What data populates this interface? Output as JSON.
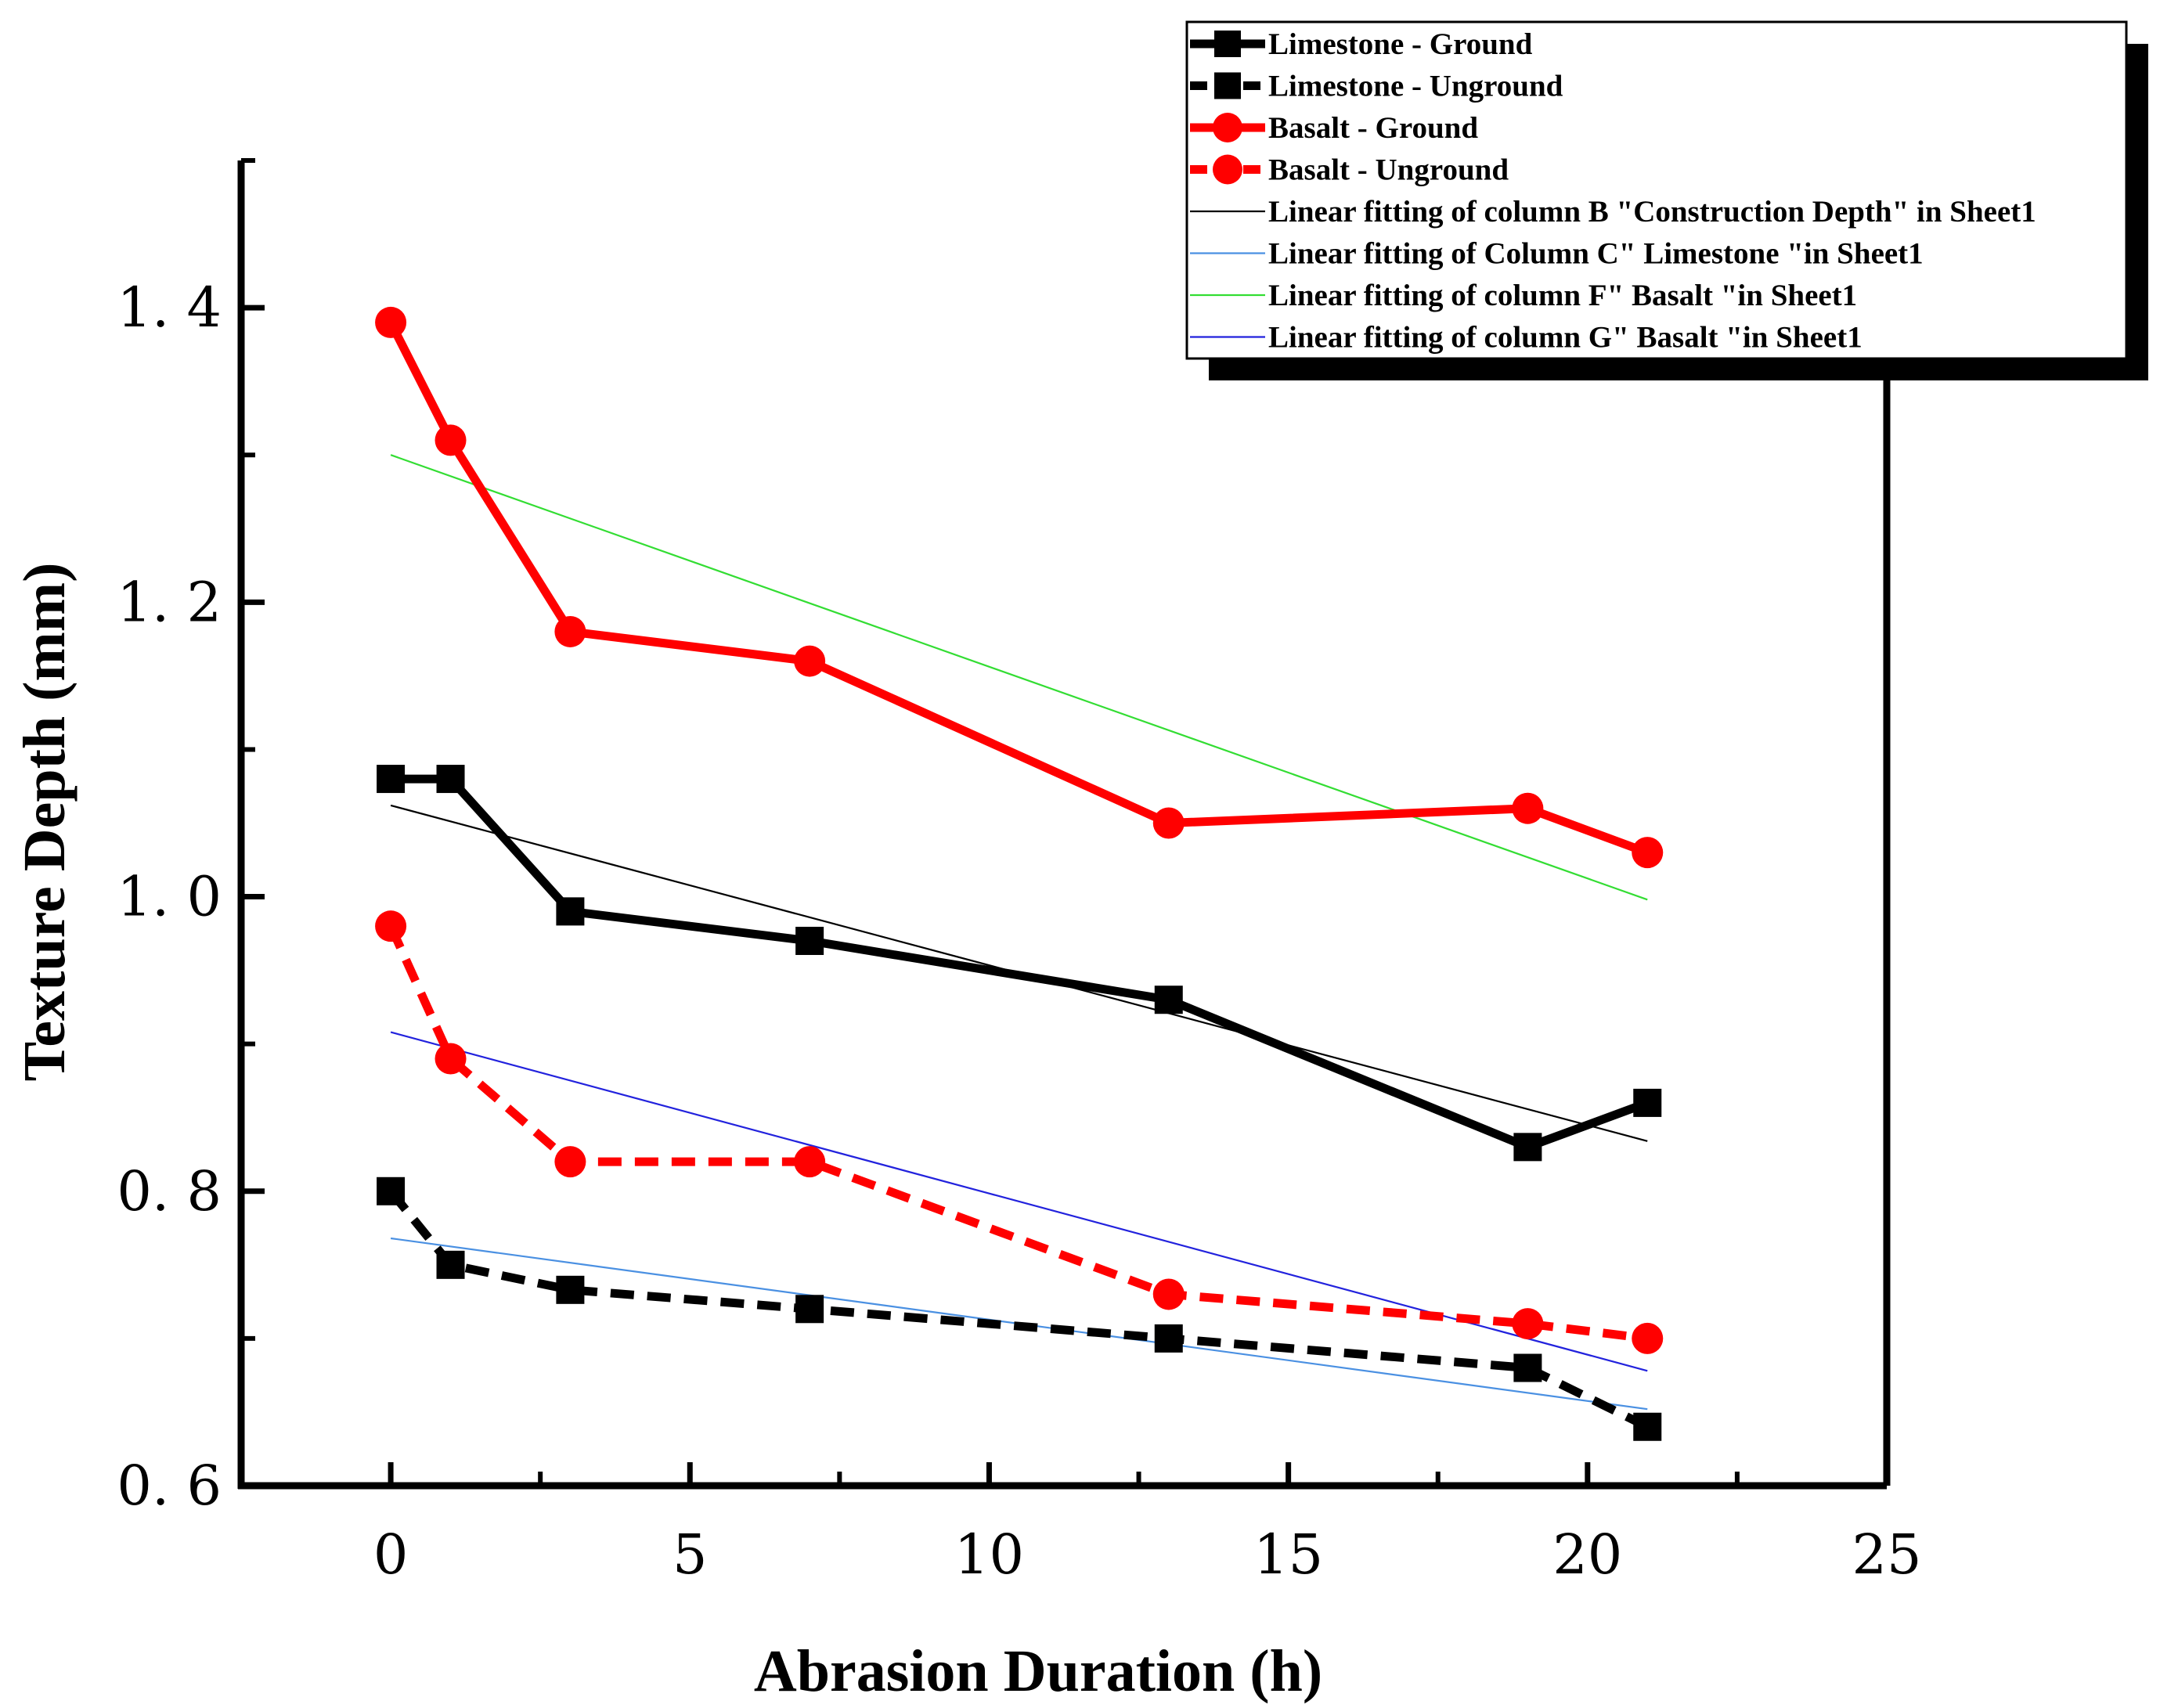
{
  "chart_data": {
    "type": "line",
    "title": "",
    "xlabel": "Abrasion Duration (h)",
    "ylabel": "Texture Depth (mm)",
    "xlim": [
      -2.5,
      25
    ],
    "ylim": [
      0.6,
      1.5
    ],
    "x_ticks": [
      0,
      5,
      10,
      15,
      20,
      25
    ],
    "y_ticks": [
      0.6,
      0.8,
      1.0,
      1.2,
      1.4
    ],
    "x_tick_labels": [
      "0",
      "5",
      "10",
      "15",
      "20",
      "25"
    ],
    "y_tick_labels": [
      "0. 6",
      "0. 8",
      "1. 0",
      "1. 2",
      "1. 4"
    ],
    "grid": false,
    "legend_position": "top-right",
    "x": [
      0,
      1,
      3,
      7,
      13,
      19,
      21
    ],
    "series": [
      {
        "name": "Limestone - Ground",
        "values": [
          1.08,
          1.08,
          0.99,
          0.97,
          0.93,
          0.83,
          0.86
        ],
        "color": "#000000",
        "line": "solid",
        "marker": "square"
      },
      {
        "name": "Limestone - Unground",
        "values": [
          0.8,
          0.75,
          0.733,
          0.72,
          0.7,
          0.68,
          0.64
        ],
        "color": "#000000",
        "line": "dashed",
        "marker": "square"
      },
      {
        "name": "Basalt - Ground",
        "values": [
          1.39,
          1.31,
          1.18,
          1.16,
          1.05,
          1.06,
          1.03
        ],
        "color": "#ff0000",
        "line": "solid",
        "marker": "circle"
      },
      {
        "name": "Basalt - Unground",
        "values": [
          0.98,
          0.89,
          0.82,
          0.82,
          0.73,
          0.71,
          0.7
        ],
        "color": "#ff0000",
        "line": "dashed",
        "marker": "circle"
      }
    ],
    "fits": [
      {
        "name": "Linear fitting of column B \"Construction Depth\" in Sheet1",
        "x": [
          0,
          21
        ],
        "values": [
          1.062,
          0.834
        ],
        "color": "#000000"
      },
      {
        "name": "Linear fitting of Column C\" Limestone \"in Sheet1",
        "x": [
          0,
          21
        ],
        "values": [
          0.768,
          0.652
        ],
        "color": "#4a90e2"
      },
      {
        "name": "Linear fitting of column F\" Basalt \"in Sheet1",
        "x": [
          0,
          21
        ],
        "values": [
          1.3,
          0.998
        ],
        "color": "#33dd33"
      },
      {
        "name": "Linear fitting of column G\" Basalt \"in Sheet1",
        "x": [
          0,
          21
        ],
        "values": [
          0.908,
          0.678
        ],
        "color": "#2222dd"
      }
    ]
  }
}
